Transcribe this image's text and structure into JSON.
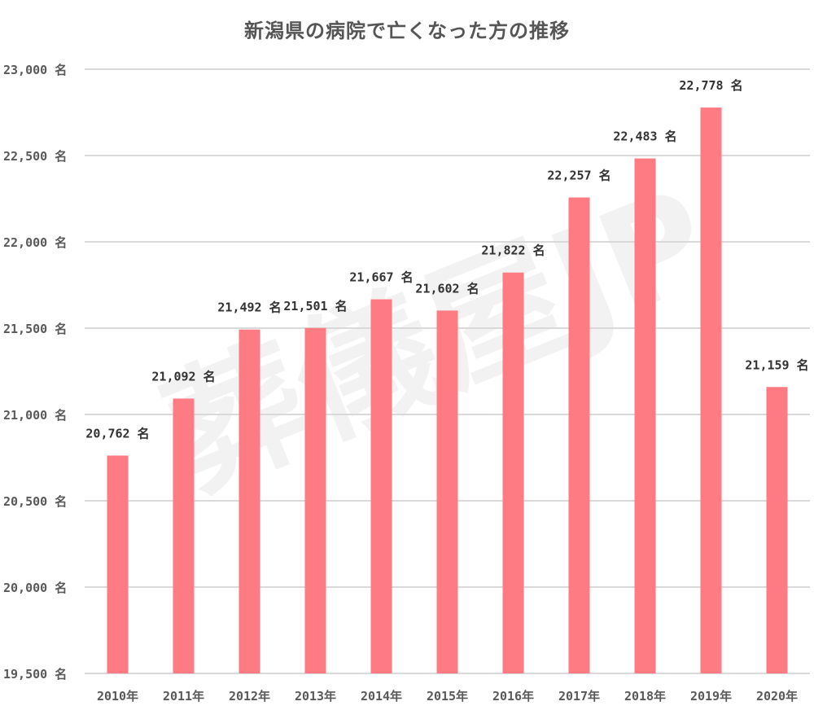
{
  "chart_data": {
    "type": "bar",
    "title": "新潟県の病院で亡くなった方の推移",
    "xlabel": "",
    "ylabel": "",
    "categories": [
      "2010年",
      "2011年",
      "2012年",
      "2013年",
      "2014年",
      "2015年",
      "2016年",
      "2017年",
      "2018年",
      "2019年",
      "2020年"
    ],
    "values": [
      20762,
      21092,
      21492,
      21501,
      21667,
      21602,
      21822,
      22257,
      22483,
      22778,
      21159
    ],
    "data_labels": [
      "20,762 名",
      "21,092 名",
      "21,492 名",
      "21,501 名",
      "21,667 名",
      "21,602 名",
      "21,822 名",
      "22,257 名",
      "22,483 名",
      "22,778 名",
      "21,159 名"
    ],
    "ylim": [
      19500,
      23000
    ],
    "yticks": [
      19500,
      20000,
      20500,
      21000,
      21500,
      22000,
      22500,
      23000
    ],
    "ytick_labels": [
      "19,500 名",
      "20,000 名",
      "20,500 名",
      "21,000 名",
      "21,500 名",
      "22,000 名",
      "22,500 名",
      "23,000 名"
    ],
    "grid": true,
    "legend": "none",
    "bar_color": "#ff7b83",
    "watermark": "葬儀屋JP"
  }
}
